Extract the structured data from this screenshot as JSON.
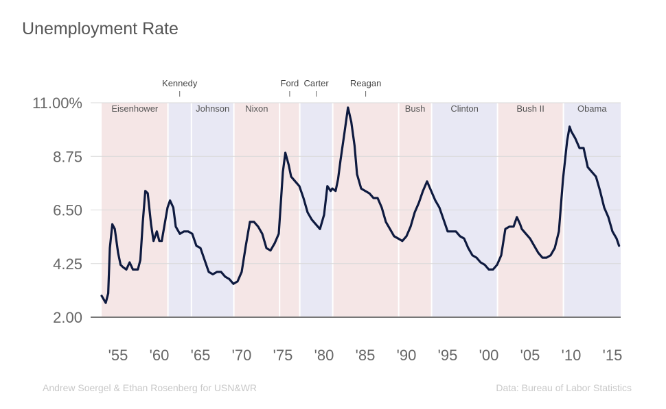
{
  "title": "Unemployment Rate",
  "credit_left": "Andrew Soergel & Ethan Rosenberg for USN&WR",
  "credit_right": "Data: Bureau of Labor Statistics",
  "chart_data": {
    "type": "line",
    "title": "Unemployment Rate",
    "xlabel": "",
    "ylabel": "",
    "xlim": [
      1953.0,
      2016.0
    ],
    "ylim": [
      2.0,
      11.0
    ],
    "y_ticks": [
      {
        "value": 2.0,
        "label": "2.00"
      },
      {
        "value": 4.25,
        "label": "4.25"
      },
      {
        "value": 6.5,
        "label": "6.50"
      },
      {
        "value": 8.75,
        "label": "8.75"
      },
      {
        "value": 11.0,
        "label": "11.00%"
      }
    ],
    "x_ticks": [
      {
        "value": 1955,
        "label": "'55"
      },
      {
        "value": 1960,
        "label": "'60"
      },
      {
        "value": 1965,
        "label": "'65"
      },
      {
        "value": 1970,
        "label": "'70"
      },
      {
        "value": 1975,
        "label": "'75"
      },
      {
        "value": 1980,
        "label": "'80"
      },
      {
        "value": 1985,
        "label": "'85"
      },
      {
        "value": 1990,
        "label": "'90"
      },
      {
        "value": 1995,
        "label": "'95"
      },
      {
        "value": 2000,
        "label": "'00"
      },
      {
        "value": 2005,
        "label": "'05"
      },
      {
        "value": 2010,
        "label": "'10"
      },
      {
        "value": 2015,
        "label": "'15"
      }
    ],
    "grid": true,
    "line_color": "#0e1a3f",
    "party_colors": {
      "R": "#f5e6e6",
      "D": "#e8e8f4"
    },
    "presidencies": [
      {
        "name": "Eisenhower",
        "start": 1953.0,
        "end": 1961.05,
        "party": "R",
        "label_above": false
      },
      {
        "name": "Kennedy",
        "start": 1961.05,
        "end": 1963.9,
        "party": "D",
        "label_above": true
      },
      {
        "name": "Johnson",
        "start": 1963.9,
        "end": 1969.05,
        "party": "D",
        "label_above": false
      },
      {
        "name": "Nixon",
        "start": 1969.05,
        "end": 1974.6,
        "party": "R",
        "label_above": false
      },
      {
        "name": "Ford",
        "start": 1974.6,
        "end": 1977.05,
        "party": "R",
        "label_above": true
      },
      {
        "name": "Carter",
        "start": 1977.05,
        "end": 1981.05,
        "party": "D",
        "label_above": true
      },
      {
        "name": "Reagan",
        "start": 1981.05,
        "end": 1989.05,
        "party": "R",
        "label_above": true
      },
      {
        "name": "Bush",
        "start": 1989.05,
        "end": 1993.05,
        "party": "R",
        "label_above": false
      },
      {
        "name": "Clinton",
        "start": 1993.05,
        "end": 2001.05,
        "party": "D",
        "label_above": false
      },
      {
        "name": "Bush II",
        "start": 2001.05,
        "end": 2009.05,
        "party": "R",
        "label_above": false
      },
      {
        "name": "Obama",
        "start": 2009.05,
        "end": 2016.0,
        "party": "D",
        "label_above": false
      }
    ],
    "series": [
      {
        "values": [
          [
            1953.0,
            2.9
          ],
          [
            1953.5,
            2.6
          ],
          [
            1953.8,
            3.0
          ],
          [
            1954.0,
            4.9
          ],
          [
            1954.3,
            5.9
          ],
          [
            1954.6,
            5.7
          ],
          [
            1955.0,
            4.7
          ],
          [
            1955.3,
            4.2
          ],
          [
            1955.6,
            4.1
          ],
          [
            1956.0,
            4.0
          ],
          [
            1956.4,
            4.3
          ],
          [
            1956.8,
            4.0
          ],
          [
            1957.0,
            4.0
          ],
          [
            1957.4,
            4.0
          ],
          [
            1957.7,
            4.4
          ],
          [
            1958.0,
            6.0
          ],
          [
            1958.3,
            7.3
          ],
          [
            1958.6,
            7.2
          ],
          [
            1959.0,
            5.9
          ],
          [
            1959.3,
            5.2
          ],
          [
            1959.7,
            5.6
          ],
          [
            1960.0,
            5.2
          ],
          [
            1960.3,
            5.2
          ],
          [
            1960.7,
            6.0
          ],
          [
            1961.0,
            6.6
          ],
          [
            1961.3,
            6.9
          ],
          [
            1961.7,
            6.6
          ],
          [
            1962.0,
            5.8
          ],
          [
            1962.5,
            5.5
          ],
          [
            1963.0,
            5.6
          ],
          [
            1963.5,
            5.6
          ],
          [
            1964.0,
            5.5
          ],
          [
            1964.5,
            5.0
          ],
          [
            1965.0,
            4.9
          ],
          [
            1965.5,
            4.4
          ],
          [
            1966.0,
            3.9
          ],
          [
            1966.5,
            3.8
          ],
          [
            1967.0,
            3.9
          ],
          [
            1967.5,
            3.9
          ],
          [
            1968.0,
            3.7
          ],
          [
            1968.5,
            3.6
          ],
          [
            1969.0,
            3.4
          ],
          [
            1969.5,
            3.5
          ],
          [
            1970.0,
            3.9
          ],
          [
            1970.5,
            5.0
          ],
          [
            1971.0,
            6.0
          ],
          [
            1971.5,
            6.0
          ],
          [
            1972.0,
            5.8
          ],
          [
            1972.5,
            5.5
          ],
          [
            1973.0,
            4.9
          ],
          [
            1973.5,
            4.8
          ],
          [
            1974.0,
            5.1
          ],
          [
            1974.5,
            5.5
          ],
          [
            1975.0,
            8.1
          ],
          [
            1975.3,
            8.9
          ],
          [
            1975.7,
            8.4
          ],
          [
            1976.0,
            7.9
          ],
          [
            1976.5,
            7.7
          ],
          [
            1977.0,
            7.5
          ],
          [
            1977.5,
            7.0
          ],
          [
            1978.0,
            6.4
          ],
          [
            1978.5,
            6.1
          ],
          [
            1979.0,
            5.9
          ],
          [
            1979.5,
            5.7
          ],
          [
            1980.0,
            6.3
          ],
          [
            1980.4,
            7.5
          ],
          [
            1980.8,
            7.3
          ],
          [
            1981.0,
            7.4
          ],
          [
            1981.4,
            7.3
          ],
          [
            1981.7,
            7.8
          ],
          [
            1982.0,
            8.6
          ],
          [
            1982.5,
            9.8
          ],
          [
            1982.9,
            10.8
          ],
          [
            1983.3,
            10.2
          ],
          [
            1983.7,
            9.2
          ],
          [
            1984.0,
            8.0
          ],
          [
            1984.5,
            7.4
          ],
          [
            1985.0,
            7.3
          ],
          [
            1985.5,
            7.2
          ],
          [
            1986.0,
            7.0
          ],
          [
            1986.5,
            7.0
          ],
          [
            1987.0,
            6.6
          ],
          [
            1987.5,
            6.0
          ],
          [
            1988.0,
            5.7
          ],
          [
            1988.5,
            5.4
          ],
          [
            1989.0,
            5.3
          ],
          [
            1989.5,
            5.2
          ],
          [
            1990.0,
            5.4
          ],
          [
            1990.5,
            5.8
          ],
          [
            1991.0,
            6.4
          ],
          [
            1991.5,
            6.8
          ],
          [
            1992.0,
            7.3
          ],
          [
            1992.5,
            7.7
          ],
          [
            1993.0,
            7.3
          ],
          [
            1993.5,
            6.9
          ],
          [
            1994.0,
            6.6
          ],
          [
            1994.5,
            6.1
          ],
          [
            1995.0,
            5.6
          ],
          [
            1995.5,
            5.6
          ],
          [
            1996.0,
            5.6
          ],
          [
            1996.5,
            5.4
          ],
          [
            1997.0,
            5.3
          ],
          [
            1997.5,
            4.9
          ],
          [
            1998.0,
            4.6
          ],
          [
            1998.5,
            4.5
          ],
          [
            1999.0,
            4.3
          ],
          [
            1999.5,
            4.2
          ],
          [
            2000.0,
            4.0
          ],
          [
            2000.5,
            4.0
          ],
          [
            2001.0,
            4.2
          ],
          [
            2001.5,
            4.6
          ],
          [
            2002.0,
            5.7
          ],
          [
            2002.5,
            5.8
          ],
          [
            2003.0,
            5.8
          ],
          [
            2003.4,
            6.2
          ],
          [
            2003.8,
            5.9
          ],
          [
            2004.0,
            5.7
          ],
          [
            2004.5,
            5.5
          ],
          [
            2005.0,
            5.3
          ],
          [
            2005.5,
            5.0
          ],
          [
            2006.0,
            4.7
          ],
          [
            2006.5,
            4.5
          ],
          [
            2007.0,
            4.5
          ],
          [
            2007.5,
            4.6
          ],
          [
            2008.0,
            4.9
          ],
          [
            2008.5,
            5.6
          ],
          [
            2009.0,
            7.8
          ],
          [
            2009.5,
            9.4
          ],
          [
            2009.8,
            10.0
          ],
          [
            2010.0,
            9.8
          ],
          [
            2010.5,
            9.5
          ],
          [
            2011.0,
            9.1
          ],
          [
            2011.5,
            9.1
          ],
          [
            2012.0,
            8.3
          ],
          [
            2012.5,
            8.1
          ],
          [
            2013.0,
            7.9
          ],
          [
            2013.5,
            7.3
          ],
          [
            2014.0,
            6.6
          ],
          [
            2014.5,
            6.2
          ],
          [
            2015.0,
            5.6
          ],
          [
            2015.5,
            5.3
          ],
          [
            2015.8,
            5.0
          ]
        ]
      }
    ]
  }
}
